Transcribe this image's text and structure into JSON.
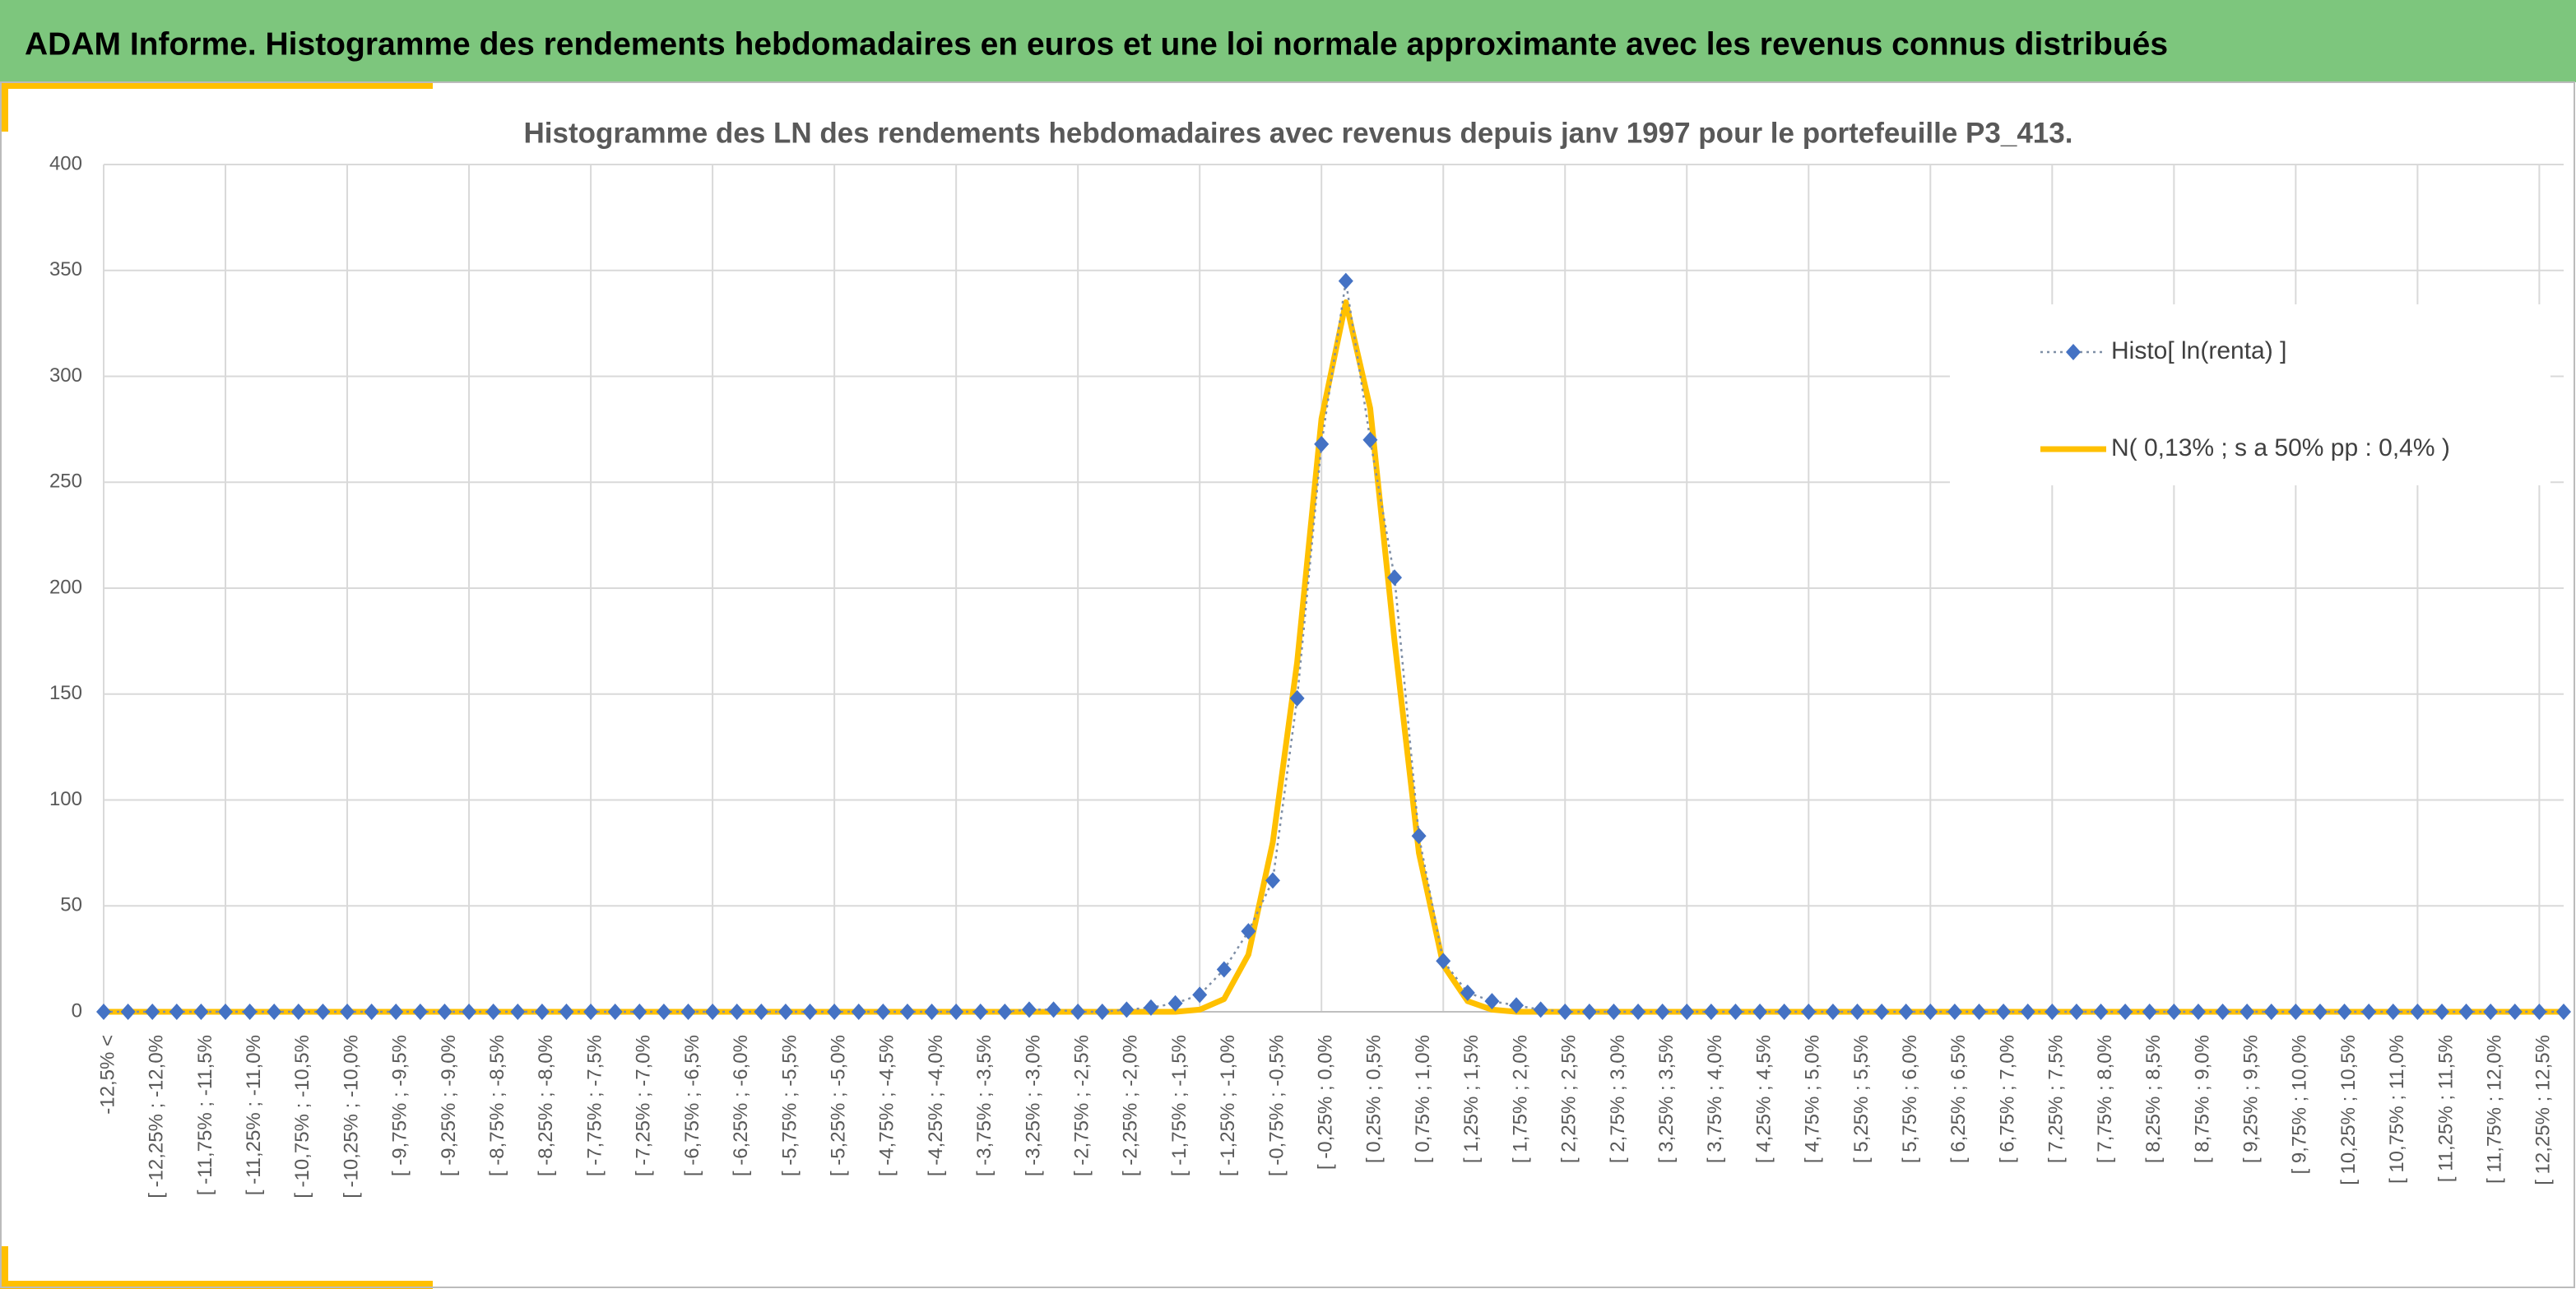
{
  "header": {
    "title": "ADAM Informe. Histogramme des rendements hebdomadaires en euros et une loi normale approximante avec les revenus connus distribués"
  },
  "chart_data": {
    "type": "line",
    "title": "Histogramme des LN des rendements hebdomadaires avec revenus depuis janv 1997 pour le portefeuille P3_413.",
    "categories": [
      "-12,5% <",
      null,
      "[ -12,25% ; -12,0%",
      null,
      "[ -11,75% ; -11,5%",
      null,
      "[ -11,25% ; -11,0%",
      null,
      "[ -10,75% ; -10,5%",
      null,
      "[ -10,25% ; -10,0%",
      null,
      "[ -9,75% ; -9,5%",
      null,
      "[ -9,25% ; -9,0%",
      null,
      "[ -8,75% ; -8,5%",
      null,
      "[ -8,25% ; -8,0%",
      null,
      "[ -7,75% ; -7,5%",
      null,
      "[ -7,25% ; -7,0%",
      null,
      "[ -6,75% ; -6,5%",
      null,
      "[ -6,25% ; -6,0%",
      null,
      "[ -5,75% ; -5,5%",
      null,
      "[ -5,25% ; -5,0%",
      null,
      "[ -4,75% ; -4,5%",
      null,
      "[ -4,25% ; -4,0%",
      null,
      "[ -3,75% ; -3,5%",
      null,
      "[ -3,25% ; -3,0%",
      null,
      "[ -2,75% ; -2,5%",
      null,
      "[ -2,25% ; -2,0%",
      null,
      "[ -1,75% ; -1,5%",
      null,
      "[ -1,25% ; -1,0%",
      null,
      "[ -0,75% ; -0,5%",
      null,
      "[ -0,25% ; 0,0%",
      null,
      "[ 0,25% ; 0,5%",
      null,
      "[ 0,75% ; 1,0%",
      null,
      "[ 1,25% ; 1,5%",
      null,
      "[ 1,75% ; 2,0%",
      null,
      "[ 2,25% ; 2,5%",
      null,
      "[ 2,75% ; 3,0%",
      null,
      "[ 3,25% ; 3,5%",
      null,
      "[ 3,75% ; 4,0%",
      null,
      "[ 4,25% ; 4,5%",
      null,
      "[ 4,75% ; 5,0%",
      null,
      "[ 5,25% ; 5,5%",
      null,
      "[ 5,75% ; 6,0%",
      null,
      "[ 6,25% ; 6,5%",
      null,
      "[ 6,75% ; 7,0%",
      null,
      "[ 7,25% ; 7,5%",
      null,
      "[ 7,75% ; 8,0%",
      null,
      "[ 8,25% ; 8,5%",
      null,
      "[ 8,75% ; 9,0%",
      null,
      "[ 9,25% ; 9,5%",
      null,
      "[ 9,75% ; 10,0%",
      null,
      "[ 10,25% ; 10,5%",
      null,
      "[ 10,75% ; 11,0%",
      null,
      "[ 11,25% ; 11,5%",
      null,
      "[ 11,75% ; 12,0%",
      null,
      "[ 12,25% ; 12,5%",
      null
    ],
    "series": [
      {
        "name": "Histo[ ln(renta) ]",
        "color": "#4472c4",
        "style": "dotted-markers",
        "values": [
          0,
          0,
          0,
          0,
          0,
          0,
          0,
          0,
          0,
          0,
          0,
          0,
          0,
          0,
          0,
          0,
          0,
          0,
          0,
          0,
          0,
          0,
          0,
          0,
          0,
          0,
          0,
          0,
          0,
          0,
          0,
          0,
          0,
          0,
          0,
          0,
          0,
          0,
          1,
          1,
          0,
          0,
          1,
          2,
          4,
          8,
          20,
          38,
          62,
          148,
          268,
          345,
          270,
          205,
          83,
          24,
          9,
          5,
          3,
          1,
          0,
          0,
          0,
          0,
          0,
          0,
          0,
          0,
          0,
          0,
          0,
          0,
          0,
          0,
          0,
          0,
          0,
          0,
          0,
          0,
          0,
          0,
          0,
          0,
          0,
          0,
          0,
          0,
          0,
          0,
          0,
          0,
          0,
          0,
          0,
          0,
          0,
          0,
          0,
          0,
          0,
          0
        ]
      },
      {
        "name": "N( 0,13% ; s a 50% pp : 0,4% )",
        "color": "#ffc000",
        "style": "solid",
        "values": [
          0,
          0,
          0,
          0,
          0,
          0,
          0,
          0,
          0,
          0,
          0,
          0,
          0,
          0,
          0,
          0,
          0,
          0,
          0,
          0,
          0,
          0,
          0,
          0,
          0,
          0,
          0,
          0,
          0,
          0,
          0,
          0,
          0,
          0,
          0,
          0,
          0,
          0,
          0,
          0,
          0,
          0,
          0,
          0,
          0,
          1,
          6,
          27,
          80,
          165,
          280,
          335,
          285,
          175,
          75,
          22,
          5,
          1,
          0,
          0,
          0,
          0,
          0,
          0,
          0,
          0,
          0,
          0,
          0,
          0,
          0,
          0,
          0,
          0,
          0,
          0,
          0,
          0,
          0,
          0,
          0,
          0,
          0,
          0,
          0,
          0,
          0,
          0,
          0,
          0,
          0,
          0,
          0,
          0,
          0,
          0,
          0,
          0,
          0,
          0,
          0,
          0
        ]
      }
    ],
    "ylim": [
      0,
      400
    ],
    "yticks": [
      0,
      50,
      100,
      150,
      200,
      250,
      300,
      350,
      400
    ],
    "grid": true,
    "legend": "upper right"
  }
}
